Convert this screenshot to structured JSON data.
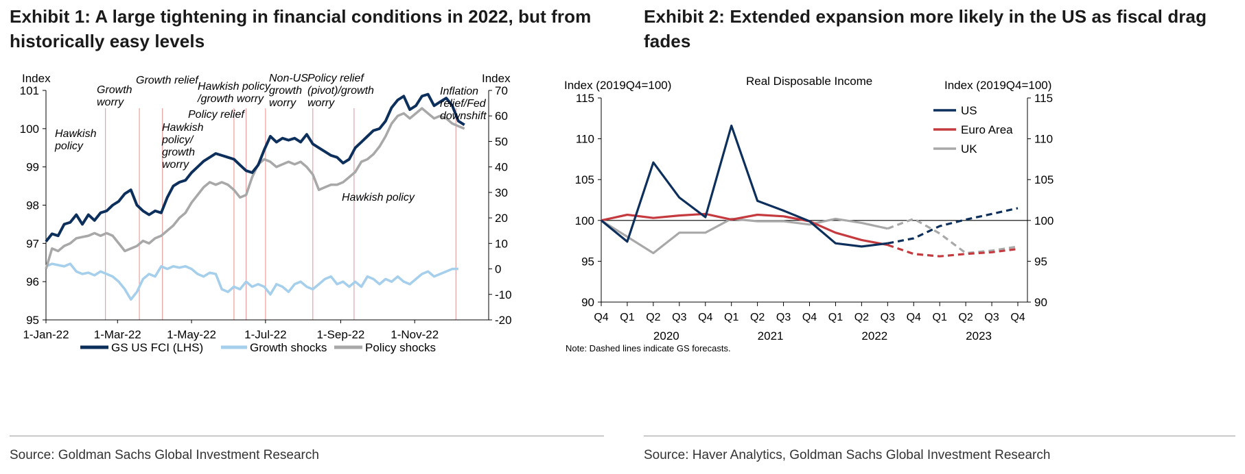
{
  "exhibit1": {
    "title": "Exhibit 1: A large tightening in financial conditions in 2022, but from historically easy levels",
    "source": "Source: Goldman Sachs Global Investment Research"
  },
  "exhibit2": {
    "title": "Exhibit 2: Extended expansion more likely in the US as fiscal drag fades",
    "source": "Source: Haver Analytics, Goldman Sachs Global Investment Research"
  },
  "colors": {
    "navy": "#0d2f5c",
    "lightblue": "#a6cfec",
    "grey": "#a8a8a8",
    "red": "#c43a3f",
    "vline": "#e8a0a0"
  },
  "chart_data": [
    {
      "type": "line",
      "left_axis_label": "Index",
      "right_axis_label": "Index",
      "left_ylim": [
        95,
        101
      ],
      "left_ticks": [
        "95",
        "96",
        "97",
        "98",
        "99",
        "100",
        "101"
      ],
      "right_ylim": [
        -20,
        70
      ],
      "right_ticks": [
        "-20",
        "-10",
        "0",
        "10",
        "20",
        "30",
        "40",
        "50",
        "60",
        "70"
      ],
      "x_range_days": [
        0,
        365
      ],
      "x_ticks": [
        {
          "label": "1-Jan-22",
          "day": 0
        },
        {
          "label": "1-Mar-22",
          "day": 59
        },
        {
          "label": "1-May-22",
          "day": 120
        },
        {
          "label": "1-Jul-22",
          "day": 181
        },
        {
          "label": "1-Sep-22",
          "day": 243
        },
        {
          "label": "1-Nov-22",
          "day": 304
        }
      ],
      "event_days": [
        49,
        77,
        96,
        155,
        165,
        181,
        220,
        254,
        338
      ],
      "annotations": [
        {
          "id": "hawkish-policy-1",
          "lines": [
            "Hawkish",
            "policy"
          ]
        },
        {
          "id": "growth-worry",
          "lines": [
            "Growth",
            "worry"
          ]
        },
        {
          "id": "growth-relief",
          "lines": [
            "Growth relief"
          ]
        },
        {
          "id": "hawkish-growth-worry-1",
          "lines": [
            "Hawkish",
            "policy/",
            "growth",
            "worry"
          ]
        },
        {
          "id": "policy-relief",
          "lines": [
            "Policy relief"
          ]
        },
        {
          "id": "hawkish-growth-worry-2",
          "lines": [
            "Hawkish policy",
            "/growth worry"
          ]
        },
        {
          "id": "non-us-growth-worry",
          "lines": [
            "Non-US",
            "growth",
            "worry"
          ]
        },
        {
          "id": "policy-relief-pivot",
          "lines": [
            "Policy relief",
            "(pivot)/growth",
            "worry"
          ]
        },
        {
          "id": "hawkish-policy-2",
          "lines": [
            "Hawkish policy"
          ]
        },
        {
          "id": "inflation-relief",
          "lines": [
            "Inflation",
            "relief/Fed",
            "downshift"
          ]
        }
      ],
      "series": [
        {
          "name": "GS US FCI (LHS)",
          "axis": "left",
          "color": "#0d2f5c",
          "points": [
            [
              0,
              97.05
            ],
            [
              5,
              97.25
            ],
            [
              10,
              97.2
            ],
            [
              15,
              97.5
            ],
            [
              20,
              97.55
            ],
            [
              25,
              97.75
            ],
            [
              30,
              97.5
            ],
            [
              35,
              97.75
            ],
            [
              40,
              97.6
            ],
            [
              45,
              97.8
            ],
            [
              50,
              97.85
            ],
            [
              55,
              98.0
            ],
            [
              60,
              98.1
            ],
            [
              65,
              98.3
            ],
            [
              70,
              98.4
            ],
            [
              75,
              98.0
            ],
            [
              80,
              97.85
            ],
            [
              85,
              97.75
            ],
            [
              90,
              97.85
            ],
            [
              95,
              97.8
            ],
            [
              100,
              98.2
            ],
            [
              105,
              98.5
            ],
            [
              110,
              98.6
            ],
            [
              115,
              98.65
            ],
            [
              120,
              98.85
            ],
            [
              125,
              99.0
            ],
            [
              130,
              99.15
            ],
            [
              135,
              99.25
            ],
            [
              140,
              99.35
            ],
            [
              145,
              99.3
            ],
            [
              150,
              99.25
            ],
            [
              155,
              99.2
            ],
            [
              160,
              99.05
            ],
            [
              165,
              98.9
            ],
            [
              170,
              98.85
            ],
            [
              175,
              99.05
            ],
            [
              180,
              99.45
            ],
            [
              185,
              99.8
            ],
            [
              190,
              99.65
            ],
            [
              195,
              99.75
            ],
            [
              200,
              99.7
            ],
            [
              205,
              99.75
            ],
            [
              210,
              99.65
            ],
            [
              215,
              99.85
            ],
            [
              220,
              99.6
            ],
            [
              225,
              99.5
            ],
            [
              230,
              99.4
            ],
            [
              235,
              99.3
            ],
            [
              240,
              99.25
            ],
            [
              245,
              99.1
            ],
            [
              250,
              99.2
            ],
            [
              255,
              99.5
            ],
            [
              260,
              99.65
            ],
            [
              265,
              99.8
            ],
            [
              270,
              99.95
            ],
            [
              275,
              100.0
            ],
            [
              280,
              100.2
            ],
            [
              285,
              100.55
            ],
            [
              290,
              100.75
            ],
            [
              295,
              100.85
            ],
            [
              300,
              100.5
            ],
            [
              305,
              100.6
            ],
            [
              310,
              100.85
            ],
            [
              315,
              100.9
            ],
            [
              320,
              100.6
            ],
            [
              325,
              100.7
            ],
            [
              330,
              100.8
            ],
            [
              335,
              100.6
            ],
            [
              340,
              100.2
            ],
            [
              345,
              100.1
            ]
          ]
        },
        {
          "name": "Growth shocks",
          "axis": "right",
          "color": "#a6cfec",
          "points": [
            [
              0,
              1
            ],
            [
              5,
              2
            ],
            [
              10,
              1.5
            ],
            [
              15,
              1
            ],
            [
              20,
              2
            ],
            [
              25,
              -1
            ],
            [
              30,
              -2
            ],
            [
              35,
              -1.5
            ],
            [
              40,
              -2.5
            ],
            [
              45,
              -1
            ],
            [
              50,
              -2
            ],
            [
              55,
              -3
            ],
            [
              60,
              -5
            ],
            [
              65,
              -8
            ],
            [
              70,
              -12
            ],
            [
              75,
              -9
            ],
            [
              80,
              -4
            ],
            [
              85,
              -2
            ],
            [
              90,
              -3
            ],
            [
              95,
              1
            ],
            [
              100,
              0
            ],
            [
              105,
              1
            ],
            [
              110,
              0.5
            ],
            [
              115,
              1
            ],
            [
              120,
              0
            ],
            [
              125,
              -2
            ],
            [
              130,
              -3
            ],
            [
              135,
              -1.5
            ],
            [
              140,
              -2
            ],
            [
              145,
              -8
            ],
            [
              150,
              -9
            ],
            [
              155,
              -7
            ],
            [
              160,
              -8
            ],
            [
              165,
              -5
            ],
            [
              170,
              -7
            ],
            [
              175,
              -6
            ],
            [
              180,
              -7
            ],
            [
              185,
              -10
            ],
            [
              190,
              -6
            ],
            [
              195,
              -7
            ],
            [
              200,
              -9
            ],
            [
              205,
              -6
            ],
            [
              210,
              -5
            ],
            [
              215,
              -7
            ],
            [
              220,
              -8
            ],
            [
              225,
              -6
            ],
            [
              230,
              -4
            ],
            [
              235,
              -3
            ],
            [
              240,
              -6
            ],
            [
              245,
              -5
            ],
            [
              250,
              -7
            ],
            [
              255,
              -5
            ],
            [
              260,
              -7
            ],
            [
              265,
              -3
            ],
            [
              270,
              -4
            ],
            [
              275,
              -6
            ],
            [
              280,
              -4
            ],
            [
              285,
              -5
            ],
            [
              290,
              -3
            ],
            [
              295,
              -5
            ],
            [
              300,
              -6
            ],
            [
              305,
              -4
            ],
            [
              310,
              -2
            ],
            [
              315,
              -1
            ],
            [
              320,
              -3
            ],
            [
              325,
              -2
            ],
            [
              330,
              -1
            ],
            [
              335,
              0
            ],
            [
              340,
              0
            ]
          ]
        },
        {
          "name": "Policy shocks",
          "axis": "right",
          "color": "#a8a8a8",
          "points": [
            [
              0,
              0
            ],
            [
              5,
              8
            ],
            [
              10,
              7
            ],
            [
              15,
              9
            ],
            [
              20,
              10
            ],
            [
              25,
              12
            ],
            [
              30,
              12.5
            ],
            [
              35,
              13
            ],
            [
              40,
              14
            ],
            [
              45,
              13
            ],
            [
              50,
              14
            ],
            [
              55,
              13
            ],
            [
              60,
              10
            ],
            [
              65,
              7
            ],
            [
              70,
              8
            ],
            [
              75,
              9
            ],
            [
              80,
              11
            ],
            [
              85,
              10
            ],
            [
              90,
              12
            ],
            [
              95,
              13
            ],
            [
              100,
              15
            ],
            [
              105,
              17
            ],
            [
              110,
              20
            ],
            [
              115,
              22
            ],
            [
              120,
              26
            ],
            [
              125,
              29
            ],
            [
              130,
              32
            ],
            [
              135,
              34
            ],
            [
              140,
              33
            ],
            [
              145,
              34
            ],
            [
              150,
              33
            ],
            [
              155,
              31
            ],
            [
              160,
              28
            ],
            [
              165,
              29
            ],
            [
              170,
              36
            ],
            [
              175,
              41
            ],
            [
              180,
              43
            ],
            [
              185,
              42
            ],
            [
              190,
              40
            ],
            [
              195,
              41
            ],
            [
              200,
              42
            ],
            [
              205,
              41
            ],
            [
              210,
              42
            ],
            [
              215,
              40
            ],
            [
              220,
              37
            ],
            [
              225,
              31
            ],
            [
              230,
              32
            ],
            [
              235,
              33
            ],
            [
              240,
              33
            ],
            [
              245,
              34
            ],
            [
              250,
              36
            ],
            [
              255,
              38
            ],
            [
              260,
              42
            ],
            [
              265,
              43
            ],
            [
              270,
              45
            ],
            [
              275,
              48
            ],
            [
              280,
              52
            ],
            [
              285,
              57
            ],
            [
              290,
              60
            ],
            [
              295,
              61
            ],
            [
              300,
              59
            ],
            [
              305,
              61
            ],
            [
              310,
              63
            ],
            [
              315,
              61
            ],
            [
              320,
              59
            ],
            [
              325,
              60
            ],
            [
              330,
              59
            ],
            [
              335,
              57
            ],
            [
              340,
              56
            ],
            [
              345,
              55
            ]
          ]
        }
      ],
      "legend": [
        "GS US FCI (LHS)",
        "Growth shocks",
        "Policy shocks"
      ]
    },
    {
      "type": "line",
      "title": "Real Disposable Income",
      "left_axis_label": "Index (2019Q4=100)",
      "right_axis_label": "Index (2019Q4=100)",
      "ylim": [
        90,
        115
      ],
      "y_ticks": [
        "90",
        "95",
        "100",
        "105",
        "110",
        "115"
      ],
      "quarters": [
        "Q4",
        "Q1",
        "Q2",
        "Q3",
        "Q4",
        "Q1",
        "Q2",
        "Q3",
        "Q4",
        "Q1",
        "Q2",
        "Q3",
        "Q4",
        "Q1",
        "Q2",
        "Q3",
        "Q4"
      ],
      "years": [
        {
          "label": "2020",
          "center_index": 2.5
        },
        {
          "label": "2021",
          "center_index": 6.5
        },
        {
          "label": "2022",
          "center_index": 10.5
        },
        {
          "label": "2023",
          "center_index": 14.5
        }
      ],
      "reference_line": 100,
      "forecast_start_index": 11,
      "series": [
        {
          "name": "US",
          "color": "#0d2f5c",
          "values": [
            100,
            97.4,
            107.1,
            102.8,
            100.4,
            111.6,
            102.4,
            101.2,
            99.9,
            97.2,
            96.8,
            97.2,
            97.8,
            99.3,
            100.1,
            100.8,
            101.5
          ]
        },
        {
          "name": "Euro Area",
          "color": "#c43a3f",
          "values": [
            100,
            100.7,
            100.3,
            100.6,
            100.8,
            100.1,
            100.7,
            100.5,
            99.9,
            98.5,
            97.6,
            97.0,
            95.9,
            95.6,
            95.9,
            96.1,
            96.5
          ]
        },
        {
          "name": "UK",
          "color": "#a8a8a8",
          "values": [
            100,
            98.0,
            96.0,
            98.5,
            98.5,
            100.2,
            99.9,
            99.9,
            99.5,
            100.2,
            99.7,
            99.0,
            100.2,
            98.4,
            96.0,
            96.3,
            96.8
          ]
        }
      ],
      "note": "Note: Dashed lines indicate GS forecasts."
    }
  ]
}
